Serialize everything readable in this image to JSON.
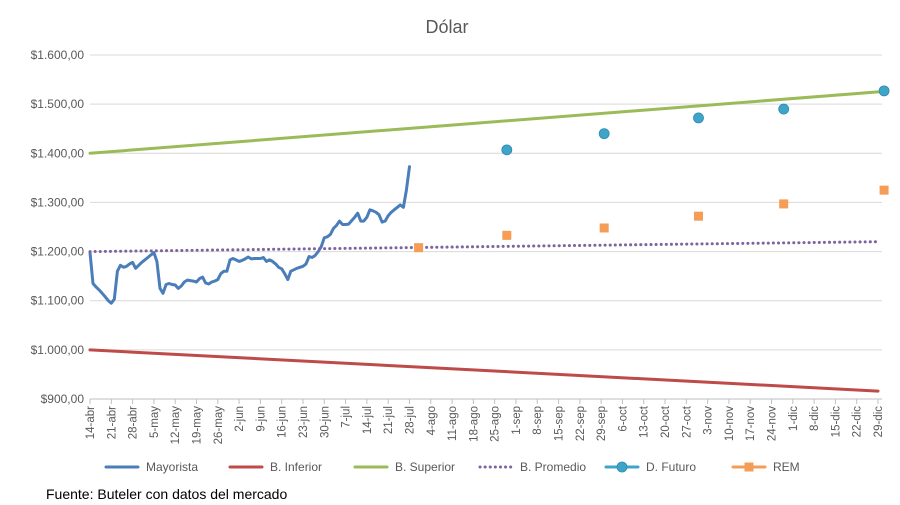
{
  "source": "Fuente: Buteler con datos del mercado",
  "chart_data": {
    "type": "line",
    "title": "Dólar",
    "xlabel": "",
    "ylabel": "",
    "x_range": [
      "2025-04-14",
      "2025-12-29"
    ],
    "ylim": [
      900,
      1600
    ],
    "yticks": [
      900,
      1000,
      1100,
      1200,
      1300,
      1400,
      1500,
      1600
    ],
    "ytick_labels": [
      "$900,00",
      "$1.000,00",
      "$1.100,00",
      "$1.200,00",
      "$1.300,00",
      "$1.400,00",
      "$1.500,00",
      "$1.600,00"
    ],
    "gridlines": "horizontal",
    "legend_position": "bottom",
    "xticks": [
      {
        "date": "2025-04-14",
        "label": "14-abr"
      },
      {
        "date": "2025-04-21",
        "label": "21-abr"
      },
      {
        "date": "2025-04-28",
        "label": "28-abr"
      },
      {
        "date": "2025-05-05",
        "label": "5-may"
      },
      {
        "date": "2025-05-12",
        "label": "12-may"
      },
      {
        "date": "2025-05-19",
        "label": "19-may"
      },
      {
        "date": "2025-05-26",
        "label": "26-may"
      },
      {
        "date": "2025-06-02",
        "label": "2-jun"
      },
      {
        "date": "2025-06-09",
        "label": "9-jun"
      },
      {
        "date": "2025-06-16",
        "label": "16-jun"
      },
      {
        "date": "2025-06-23",
        "label": "23-jun"
      },
      {
        "date": "2025-06-30",
        "label": "30-jun"
      },
      {
        "date": "2025-07-07",
        "label": "7-jul"
      },
      {
        "date": "2025-07-14",
        "label": "14-jul"
      },
      {
        "date": "2025-07-21",
        "label": "21-jul"
      },
      {
        "date": "2025-07-28",
        "label": "28-jul"
      },
      {
        "date": "2025-08-04",
        "label": "4-ago"
      },
      {
        "date": "2025-08-11",
        "label": "11-ago"
      },
      {
        "date": "2025-08-18",
        "label": "18-ago"
      },
      {
        "date": "2025-08-25",
        "label": "25-ago"
      },
      {
        "date": "2025-09-01",
        "label": "1-sep"
      },
      {
        "date": "2025-09-08",
        "label": "8-sep"
      },
      {
        "date": "2025-09-15",
        "label": "15-sep"
      },
      {
        "date": "2025-09-22",
        "label": "22-sep"
      },
      {
        "date": "2025-09-29",
        "label": "29-sep"
      },
      {
        "date": "2025-10-06",
        "label": "6-oct"
      },
      {
        "date": "2025-10-13",
        "label": "13-oct"
      },
      {
        "date": "2025-10-20",
        "label": "20-oct"
      },
      {
        "date": "2025-10-27",
        "label": "27-oct"
      },
      {
        "date": "2025-11-03",
        "label": "3-nov"
      },
      {
        "date": "2025-11-10",
        "label": "10-nov"
      },
      {
        "date": "2025-11-17",
        "label": "17-nov"
      },
      {
        "date": "2025-11-24",
        "label": "24-nov"
      },
      {
        "date": "2025-12-01",
        "label": "1-dic"
      },
      {
        "date": "2025-12-08",
        "label": "8-dic"
      },
      {
        "date": "2025-12-15",
        "label": "15-dic"
      },
      {
        "date": "2025-12-22",
        "label": "22-dic"
      },
      {
        "date": "2025-12-29",
        "label": "29-dic"
      }
    ],
    "series": [
      {
        "name": "Mayorista",
        "style": "solid",
        "color": "#4a7ebb",
        "points": [
          [
            "2025-04-14",
            1198
          ],
          [
            "2025-04-15",
            1135
          ],
          [
            "2025-04-16",
            1128
          ],
          [
            "2025-04-17",
            1122
          ],
          [
            "2025-04-18",
            1115
          ],
          [
            "2025-04-19",
            1108
          ],
          [
            "2025-04-20",
            1100
          ],
          [
            "2025-04-21",
            1095
          ],
          [
            "2025-04-22",
            1103
          ],
          [
            "2025-04-23",
            1160
          ],
          [
            "2025-04-24",
            1172
          ],
          [
            "2025-04-25",
            1168
          ],
          [
            "2025-04-26",
            1170
          ],
          [
            "2025-04-27",
            1175
          ],
          [
            "2025-04-28",
            1178
          ],
          [
            "2025-04-29",
            1166
          ],
          [
            "2025-04-30",
            1172
          ],
          [
            "2025-05-01",
            1178
          ],
          [
            "2025-05-02",
            1183
          ],
          [
            "2025-05-03",
            1188
          ],
          [
            "2025-05-04",
            1193
          ],
          [
            "2025-05-05",
            1198
          ],
          [
            "2025-05-06",
            1180
          ],
          [
            "2025-05-07",
            1125
          ],
          [
            "2025-05-08",
            1115
          ],
          [
            "2025-05-09",
            1133
          ],
          [
            "2025-05-10",
            1135
          ],
          [
            "2025-05-11",
            1133
          ],
          [
            "2025-05-12",
            1132
          ],
          [
            "2025-05-13",
            1125
          ],
          [
            "2025-05-14",
            1130
          ],
          [
            "2025-05-15",
            1138
          ],
          [
            "2025-05-16",
            1142
          ],
          [
            "2025-05-17",
            1141
          ],
          [
            "2025-05-18",
            1140
          ],
          [
            "2025-05-19",
            1138
          ],
          [
            "2025-05-20",
            1145
          ],
          [
            "2025-05-21",
            1148
          ],
          [
            "2025-05-22",
            1136
          ],
          [
            "2025-05-23",
            1134
          ],
          [
            "2025-05-24",
            1138
          ],
          [
            "2025-05-25",
            1140
          ],
          [
            "2025-05-26",
            1143
          ],
          [
            "2025-05-27",
            1155
          ],
          [
            "2025-05-28",
            1160
          ],
          [
            "2025-05-29",
            1160
          ],
          [
            "2025-05-30",
            1183
          ],
          [
            "2025-05-31",
            1186
          ],
          [
            "2025-06-01",
            1183
          ],
          [
            "2025-06-02",
            1180
          ],
          [
            "2025-06-03",
            1182
          ],
          [
            "2025-06-04",
            1185
          ],
          [
            "2025-06-05",
            1189
          ],
          [
            "2025-06-06",
            1185
          ],
          [
            "2025-06-07",
            1186
          ],
          [
            "2025-06-08",
            1186
          ],
          [
            "2025-06-09",
            1186
          ],
          [
            "2025-06-10",
            1188
          ],
          [
            "2025-06-11",
            1180
          ],
          [
            "2025-06-12",
            1183
          ],
          [
            "2025-06-13",
            1180
          ],
          [
            "2025-06-14",
            1175
          ],
          [
            "2025-06-15",
            1168
          ],
          [
            "2025-06-16",
            1165
          ],
          [
            "2025-06-17",
            1155
          ],
          [
            "2025-06-18",
            1143
          ],
          [
            "2025-06-19",
            1160
          ],
          [
            "2025-06-20",
            1163
          ],
          [
            "2025-06-21",
            1166
          ],
          [
            "2025-06-22",
            1168
          ],
          [
            "2025-06-23",
            1170
          ],
          [
            "2025-06-24",
            1175
          ],
          [
            "2025-06-25",
            1190
          ],
          [
            "2025-06-26",
            1188
          ],
          [
            "2025-06-27",
            1192
          ],
          [
            "2025-06-28",
            1200
          ],
          [
            "2025-06-29",
            1210
          ],
          [
            "2025-06-30",
            1228
          ],
          [
            "2025-07-01",
            1230
          ],
          [
            "2025-07-02",
            1235
          ],
          [
            "2025-07-03",
            1247
          ],
          [
            "2025-07-04",
            1253
          ],
          [
            "2025-07-05",
            1262
          ],
          [
            "2025-07-06",
            1255
          ],
          [
            "2025-07-07",
            1255
          ],
          [
            "2025-07-08",
            1256
          ],
          [
            "2025-07-09",
            1263
          ],
          [
            "2025-07-10",
            1270
          ],
          [
            "2025-07-11",
            1278
          ],
          [
            "2025-07-12",
            1262
          ],
          [
            "2025-07-13",
            1262
          ],
          [
            "2025-07-14",
            1270
          ],
          [
            "2025-07-15",
            1285
          ],
          [
            "2025-07-16",
            1283
          ],
          [
            "2025-07-17",
            1280
          ],
          [
            "2025-07-18",
            1275
          ],
          [
            "2025-07-19",
            1260
          ],
          [
            "2025-07-20",
            1262
          ],
          [
            "2025-07-21",
            1273
          ],
          [
            "2025-07-22",
            1280
          ],
          [
            "2025-07-23",
            1285
          ],
          [
            "2025-07-24",
            1290
          ],
          [
            "2025-07-25",
            1295
          ],
          [
            "2025-07-26",
            1290
          ],
          [
            "2025-07-27",
            1325
          ],
          [
            "2025-07-28",
            1373
          ]
        ]
      },
      {
        "name": "B. Inferior",
        "style": "solid",
        "color": "#be4b48",
        "points": [
          [
            "2025-04-14",
            1000
          ],
          [
            "2025-12-29",
            916
          ]
        ]
      },
      {
        "name": "B. Superior",
        "style": "solid",
        "color": "#9bbb59",
        "points": [
          [
            "2025-04-14",
            1400
          ],
          [
            "2025-12-29",
            1525
          ]
        ]
      },
      {
        "name": "B. Promedio",
        "style": "dotted",
        "color": "#7f63a1",
        "points": [
          [
            "2025-04-14",
            1200
          ],
          [
            "2025-12-29",
            1220
          ]
        ]
      },
      {
        "name": "D. Futuro",
        "style": "markers",
        "marker": "circle",
        "color": "#3fa5c8",
        "points": [
          [
            "2025-08-29",
            1407
          ],
          [
            "2025-09-30",
            1440
          ],
          [
            "2025-10-31",
            1472
          ],
          [
            "2025-11-28",
            1490
          ],
          [
            "2025-12-31",
            1527
          ]
        ]
      },
      {
        "name": "REM",
        "style": "markers",
        "marker": "square",
        "color": "#f59d56",
        "points": [
          [
            "2025-07-31",
            1208
          ],
          [
            "2025-08-29",
            1233
          ],
          [
            "2025-09-30",
            1248
          ],
          [
            "2025-10-31",
            1272
          ],
          [
            "2025-11-28",
            1297
          ],
          [
            "2025-12-31",
            1325
          ]
        ]
      }
    ]
  }
}
